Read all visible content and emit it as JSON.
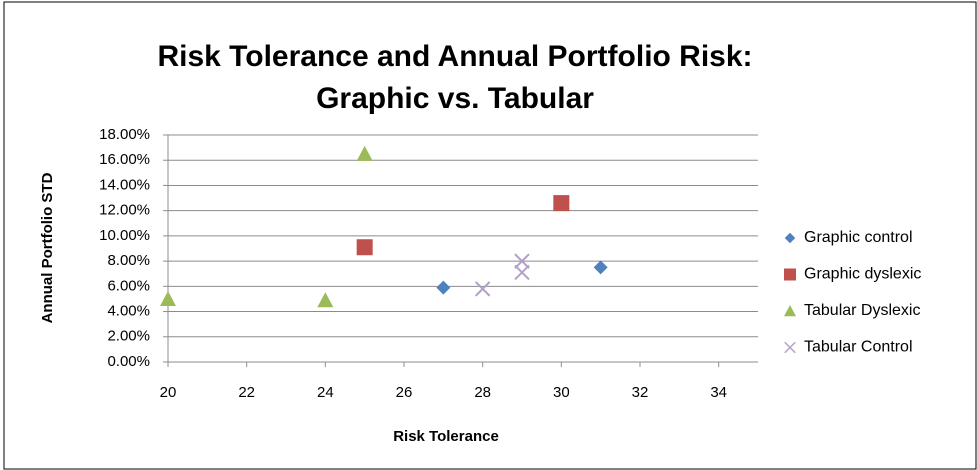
{
  "chart_data": {
    "type": "scatter",
    "title": [
      "Risk Tolerance and Annual Portfolio Risk:",
      "Graphic vs. Tabular"
    ],
    "xlabel": "Risk Tolerance",
    "ylabel": "Annual  Portfolio STD",
    "xlim": [
      20,
      35
    ],
    "xticks": [
      20,
      22,
      24,
      26,
      28,
      30,
      32,
      34
    ],
    "ylim": [
      0,
      18
    ],
    "yticks": [
      {
        "value": 0,
        "label": "0.00%"
      },
      {
        "value": 2,
        "label": "2.00%"
      },
      {
        "value": 4,
        "label": "4.00%"
      },
      {
        "value": 6,
        "label": "6.00%"
      },
      {
        "value": 8,
        "label": "8.00%"
      },
      {
        "value": 10,
        "label": "10.00%"
      },
      {
        "value": 12,
        "label": "12.00%"
      },
      {
        "value": 14,
        "label": "14.00%"
      },
      {
        "value": 16,
        "label": "16.00%"
      },
      {
        "value": 18,
        "label": "18.00%"
      }
    ],
    "grid": true,
    "legend": "right",
    "series": [
      {
        "name": "Graphic control",
        "color": "#4f81bd",
        "marker": "diamond",
        "x": [
          27,
          31
        ],
        "values": [
          5.9,
          7.5
        ]
      },
      {
        "name": "Graphic dyslexic",
        "color": "#c0504d",
        "marker": "square",
        "x": [
          25,
          30
        ],
        "values": [
          9.1,
          12.6
        ]
      },
      {
        "name": "Tabular Dyslexic",
        "color": "#9bbb59",
        "marker": "triangle",
        "x": [
          25,
          20,
          24
        ],
        "values": [
          16.5,
          5.0,
          4.9
        ]
      },
      {
        "name": "Tabular Control",
        "color": "#b3a2c7",
        "marker": "x",
        "x": [
          28,
          29,
          29
        ],
        "values": [
          5.8,
          8.0,
          7.1
        ]
      }
    ]
  }
}
